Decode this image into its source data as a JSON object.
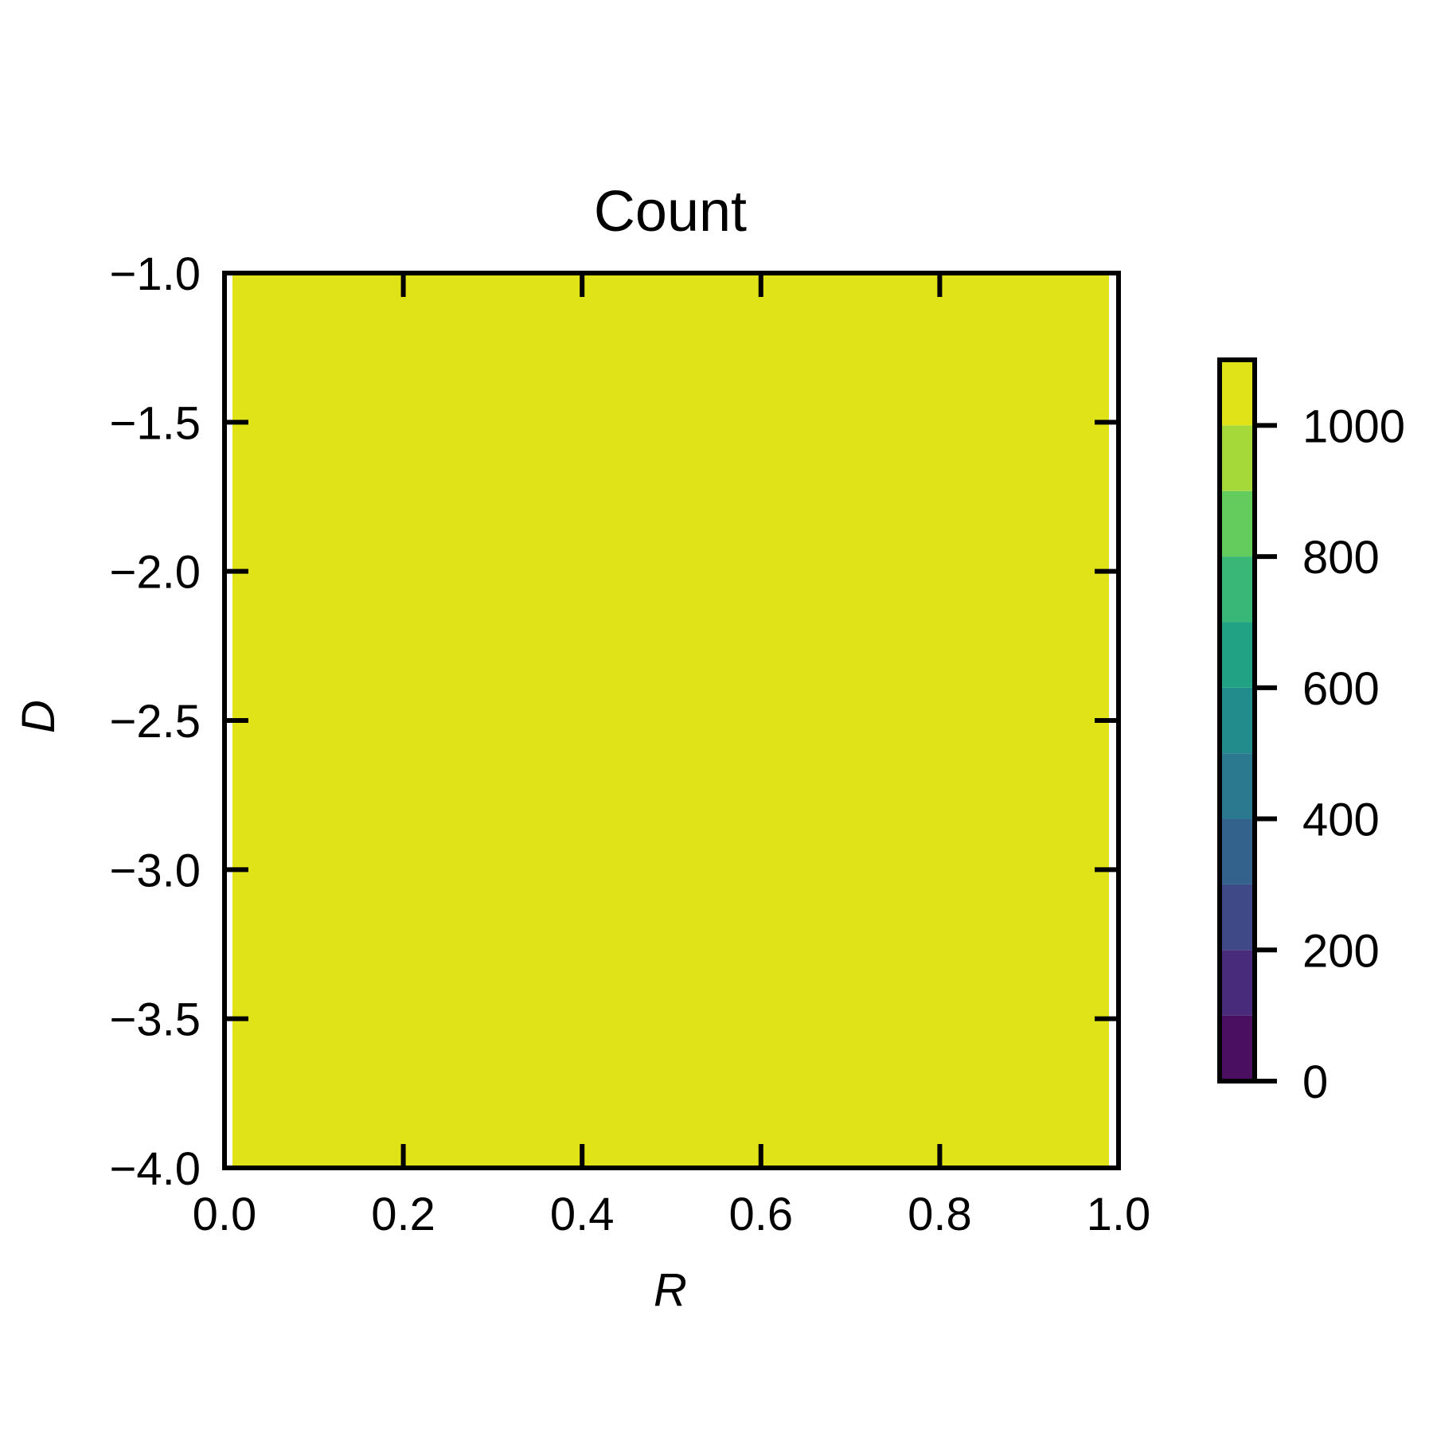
{
  "chart_data": {
    "type": "heatmap",
    "title": "Count",
    "xlabel": "R",
    "ylabel": "D",
    "xlim": [
      0.0,
      1.0
    ],
    "ylim": [
      -4.0,
      -1.0
    ],
    "x_ticks": [
      "0.0",
      "0.2",
      "0.4",
      "0.6",
      "0.8",
      "1.0"
    ],
    "x_tick_values": [
      0.0,
      0.2,
      0.4,
      0.6,
      0.8,
      1.0
    ],
    "y_ticks": [
      "−1.0",
      "−1.5",
      "−2.0",
      "−2.5",
      "−3.0",
      "−3.5",
      "−4.0"
    ],
    "y_tick_values": [
      -1.0,
      -1.5,
      -2.0,
      -2.5,
      -3.0,
      -3.5,
      -4.0
    ],
    "field_value": 1100,
    "field_color": "#e0e317",
    "colorbar": {
      "range": [
        0,
        1100
      ],
      "ticks": [
        "0",
        "200",
        "400",
        "600",
        "800",
        "1000"
      ],
      "tick_values": [
        0,
        200,
        400,
        600,
        800,
        1000
      ],
      "levels": [
        0,
        100,
        200,
        300,
        400,
        500,
        600,
        700,
        800,
        900,
        1000,
        1100
      ],
      "colors": [
        "#4a0f60",
        "#482b7a",
        "#3f4988",
        "#33628d",
        "#2b798e",
        "#228c8d",
        "#22a285",
        "#38b777",
        "#64cb5d",
        "#a5d93a",
        "#e0e317"
      ]
    }
  }
}
